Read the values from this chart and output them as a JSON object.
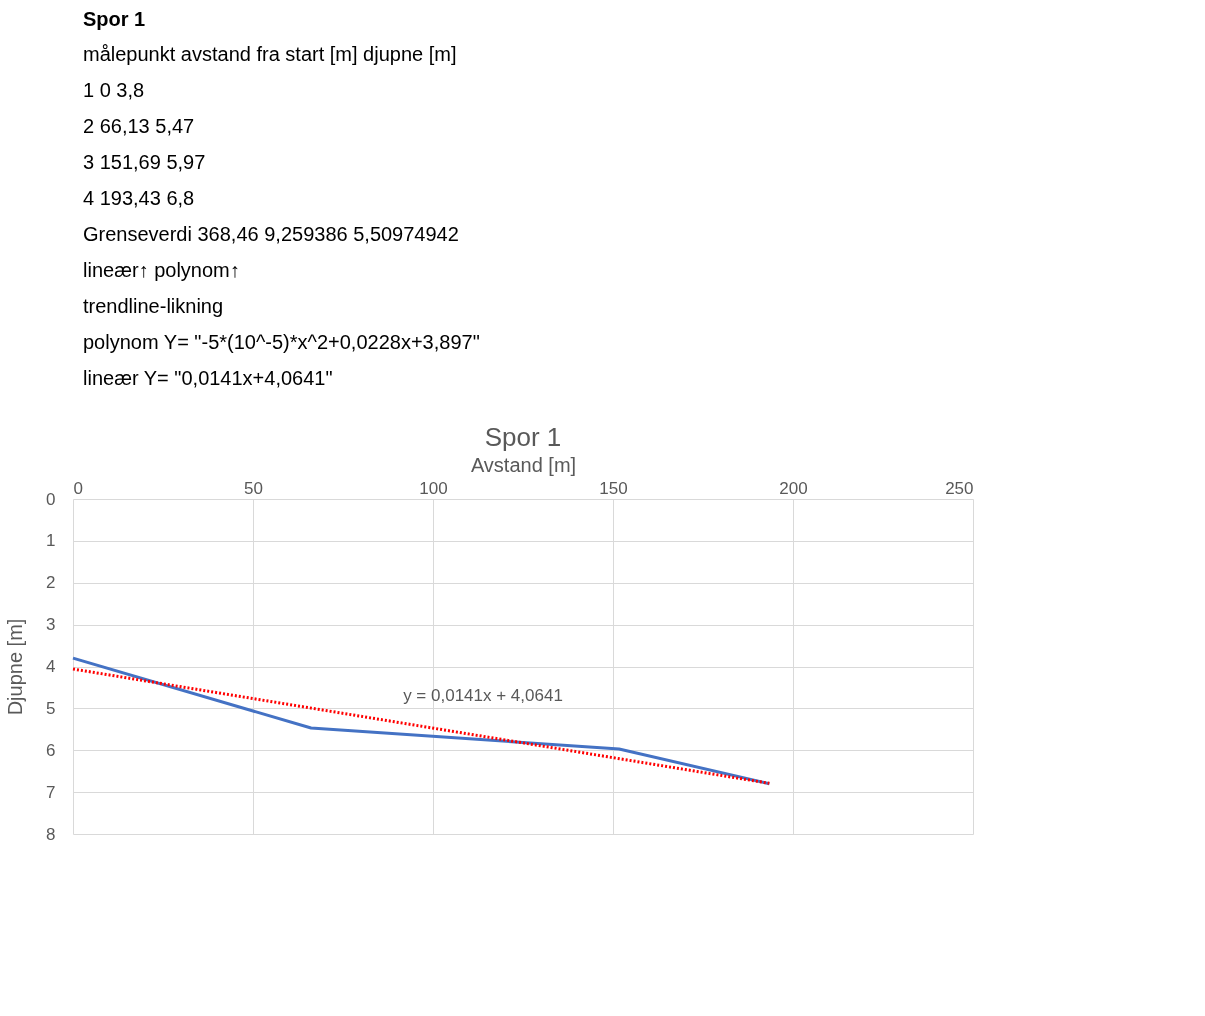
{
  "chart_data": [
    {
      "type": "other",
      "title": "Spor 1",
      "annotations": [
        "målepunkt   avstand fra start [m]   djupne [m]",
        "1   0   3,8",
        "2   66,13   5,47",
        "3   151,69   5,97",
        "4   193,43   6,8",
        "Grenseverdi   368,46   9,259386   5,50974942",
        "lineær↑   polynom↑",
        "trendline-likning",
        "polynom   Y=   \"-5*(10^-5)*x^2+0,0228x+3,897\"",
        "lineær   Y=   \"0,0141x+4,0641\""
      ]
    },
    {
      "type": "line",
      "title": "Spor 1",
      "xlabel": "Avstand [m]",
      "ylabel": "Djupne [m]",
      "xlim": [
        0,
        250
      ],
      "xticks": [
        0,
        50,
        100,
        150,
        200,
        250
      ],
      "ylim": [
        8,
        0
      ],
      "yticks": [
        0,
        1,
        2,
        3,
        4,
        5,
        6,
        7,
        8
      ],
      "grid": true,
      "marker": "none",
      "series": [
        {
          "type": "line",
          "color": "#4472c4",
          "line_style": "solid",
          "x": [
            0,
            66.13,
            151.69,
            193.43
          ],
          "values": [
            3.8,
            5.47,
            5.97,
            6.8
          ]
        },
        {
          "type": "line",
          "color": "#ff0000",
          "line_style": "dotted",
          "x": [
            0,
            193.43
          ],
          "values": [
            4.06,
            6.79
          ]
        }
      ],
      "annotations": [
        "y = 0,0141x + 4,0641"
      ]
    }
  ]
}
